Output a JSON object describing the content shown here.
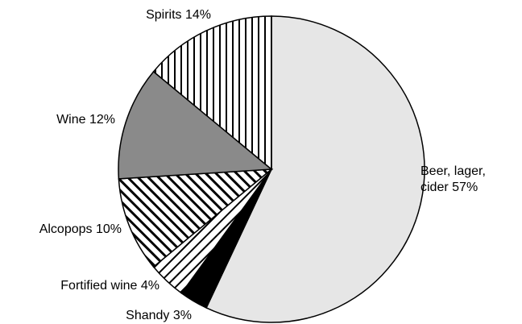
{
  "chart_data": {
    "type": "pie",
    "categories": [
      "Beer, lager, cider",
      "Shandy",
      "Fortified wine",
      "Alcopops",
      "Wine",
      "Spirits"
    ],
    "values": [
      57,
      3,
      4,
      10,
      12,
      14
    ],
    "value_labels": [
      "57%",
      "3%",
      "4%",
      "10%",
      "12%",
      "14%"
    ]
  }
}
